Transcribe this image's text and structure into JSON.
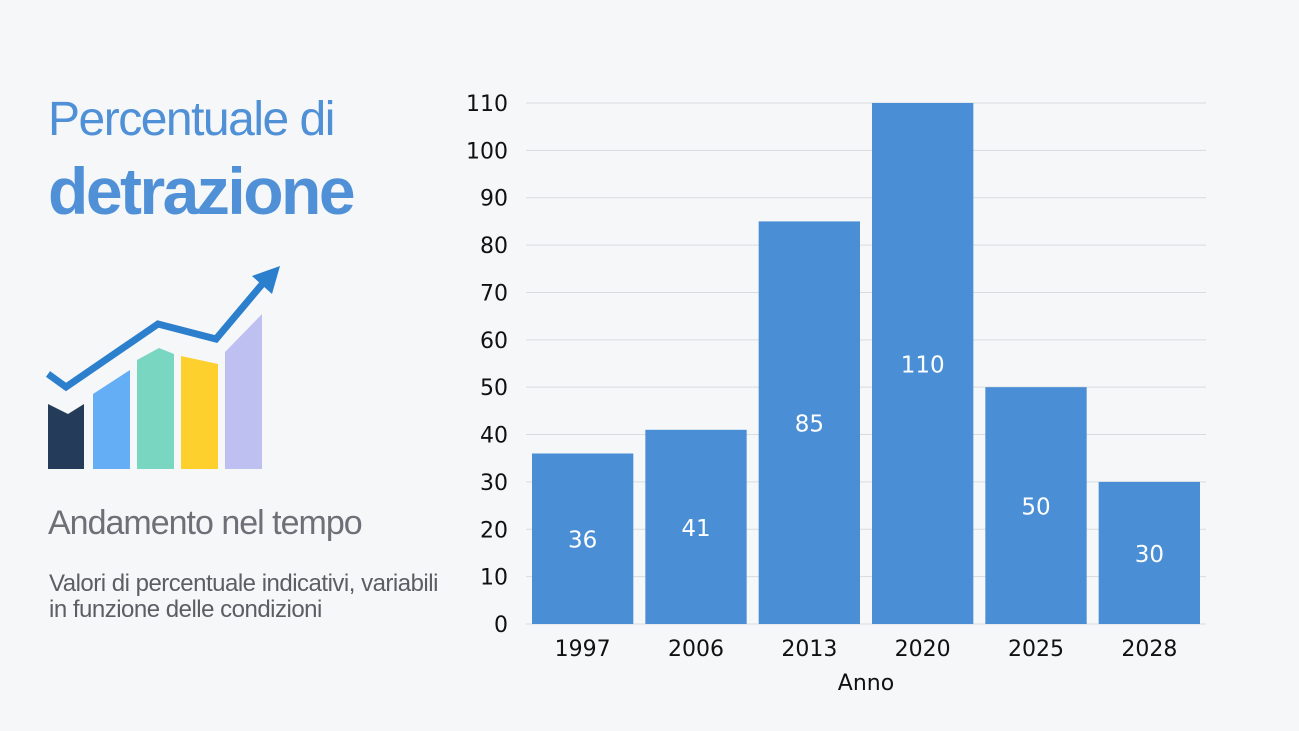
{
  "slide": {
    "title_line1": "Percentuale di",
    "title_line2": "detrazione",
    "subtitle": "Andamento nel tempo",
    "note": "Valori di percentuale indicativi, variabili in funzione delle condizioni",
    "icon": "growth-chart-icon"
  },
  "colors": {
    "bar": "#4a8fd5",
    "title": "#4f90d6",
    "grid": "#d9dbe0"
  },
  "chart_data": {
    "type": "bar",
    "categories": [
      "1997",
      "2006",
      "2013",
      "2020",
      "2025",
      "2028"
    ],
    "values": [
      36,
      41,
      85,
      110,
      50,
      30
    ],
    "xlabel": "Anno",
    "ylabel": "",
    "ylim": [
      0,
      110
    ],
    "yticks": [
      0,
      10,
      20,
      30,
      40,
      50,
      60,
      70,
      80,
      90,
      100,
      110
    ],
    "data_labels": true,
    "grid": true,
    "legend": false
  }
}
